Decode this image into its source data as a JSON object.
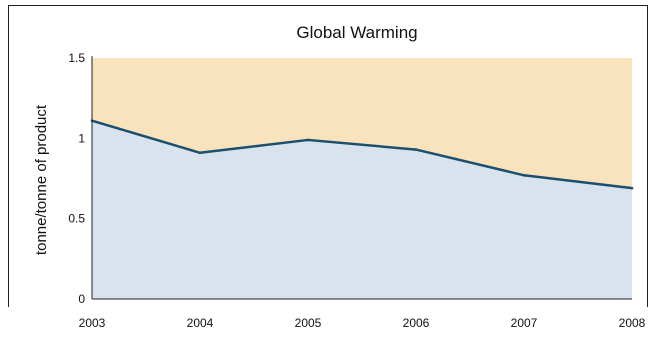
{
  "chart_data": {
    "type": "area",
    "title": "Global Warming",
    "xlabel": "",
    "ylabel": "tonne/tonne of product",
    "categories": [
      "2003",
      "2004",
      "2005",
      "2006",
      "2007",
      "2008"
    ],
    "y_ticks": [
      "0",
      "0.5",
      "1",
      "1.5"
    ],
    "ylim": [
      0,
      1.5
    ],
    "series": [
      {
        "values": [
          1.11,
          0.91,
          0.99,
          0.93,
          0.77,
          0.69
        ]
      }
    ],
    "colors": {
      "area_below": "#d9e3ed",
      "area_above": "#f9e3bd",
      "line": "#1b4f6e"
    },
    "grid": false,
    "legend": "none"
  }
}
